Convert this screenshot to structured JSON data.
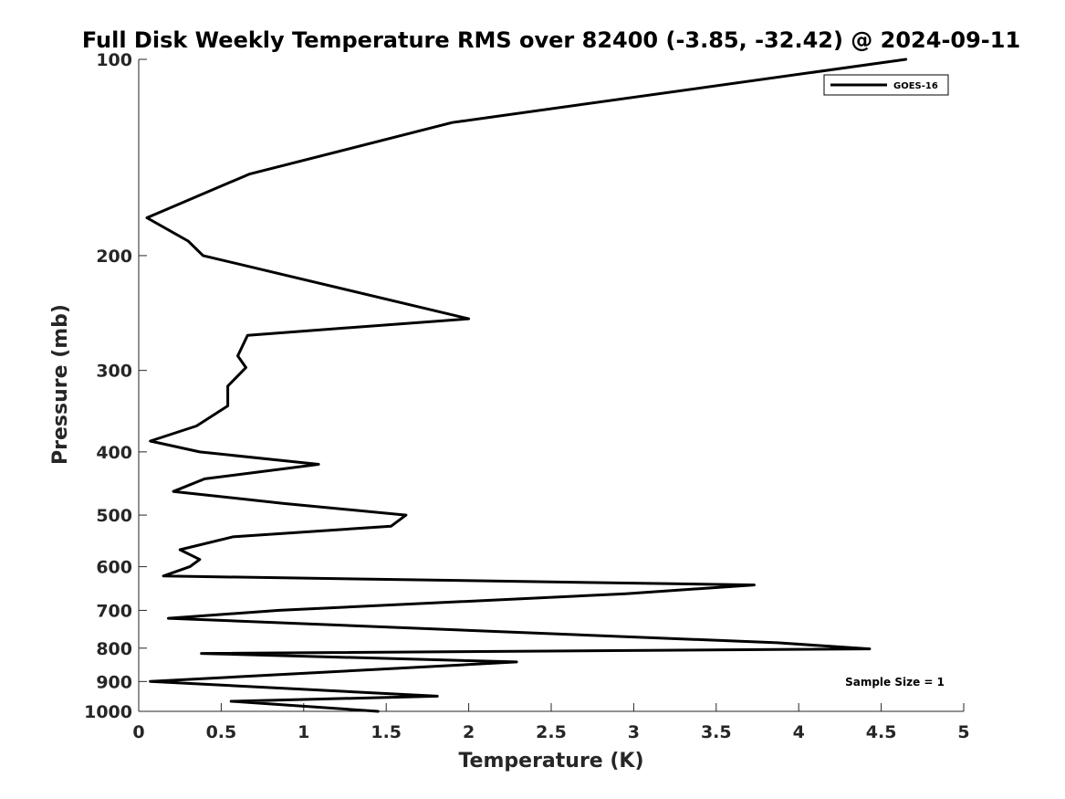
{
  "chart_data": {
    "type": "line",
    "title": "Full Disk Weekly Temperature RMS over 82400 (-3.85, -32.42) @ 2024-09-11",
    "xlabel": "Temperature (K)",
    "ylabel": "Pressure (mb)",
    "xlim": [
      0,
      5
    ],
    "ylim": [
      100,
      1000
    ],
    "y_scale": "log",
    "y_reversed": true,
    "xticks": [
      0,
      0.5,
      1,
      1.5,
      2,
      2.5,
      3,
      3.5,
      4,
      4.5,
      5
    ],
    "xtick_labels": [
      "0",
      "0.5",
      "1",
      "1.5",
      "2",
      "2.5",
      "3",
      "3.5",
      "4",
      "4.5",
      "5"
    ],
    "yticks": [
      100,
      200,
      300,
      400,
      500,
      600,
      700,
      800,
      900,
      1000
    ],
    "ytick_labels": [
      "100",
      "200",
      "300",
      "400",
      "500",
      "600",
      "700",
      "800",
      "900",
      "1000"
    ],
    "grid": false,
    "legend": {
      "position": "top-right",
      "entries": [
        "GOES-16"
      ]
    },
    "annotation": "Sample Size = 1",
    "series": [
      {
        "name": "GOES-16",
        "color": "#000000",
        "points": [
          [
            4.65,
            100
          ],
          [
            1.9,
            125
          ],
          [
            0.67,
            150
          ],
          [
            0.05,
            175
          ],
          [
            0.3,
            190
          ],
          [
            0.39,
            200
          ],
          [
            2.0,
            250
          ],
          [
            0.66,
            265
          ],
          [
            0.6,
            285
          ],
          [
            0.65,
            297
          ],
          [
            0.54,
            317
          ],
          [
            0.54,
            340
          ],
          [
            0.35,
            365
          ],
          [
            0.07,
            385
          ],
          [
            0.37,
            400
          ],
          [
            1.09,
            418
          ],
          [
            0.4,
            440
          ],
          [
            0.21,
            460
          ],
          [
            0.88,
            480
          ],
          [
            1.62,
            500
          ],
          [
            1.53,
            520
          ],
          [
            0.57,
            540
          ],
          [
            0.25,
            565
          ],
          [
            0.37,
            585
          ],
          [
            0.31,
            600
          ],
          [
            0.15,
            620
          ],
          [
            3.73,
            640
          ],
          [
            2.95,
            660
          ],
          [
            0.85,
            700
          ],
          [
            0.18,
            720
          ],
          [
            3.87,
            785
          ],
          [
            4.43,
            802
          ],
          [
            0.38,
            815
          ],
          [
            2.29,
            840
          ],
          [
            0.07,
            900
          ],
          [
            1.81,
            948
          ],
          [
            0.56,
            965
          ],
          [
            1.45,
            1000
          ]
        ]
      }
    ]
  }
}
